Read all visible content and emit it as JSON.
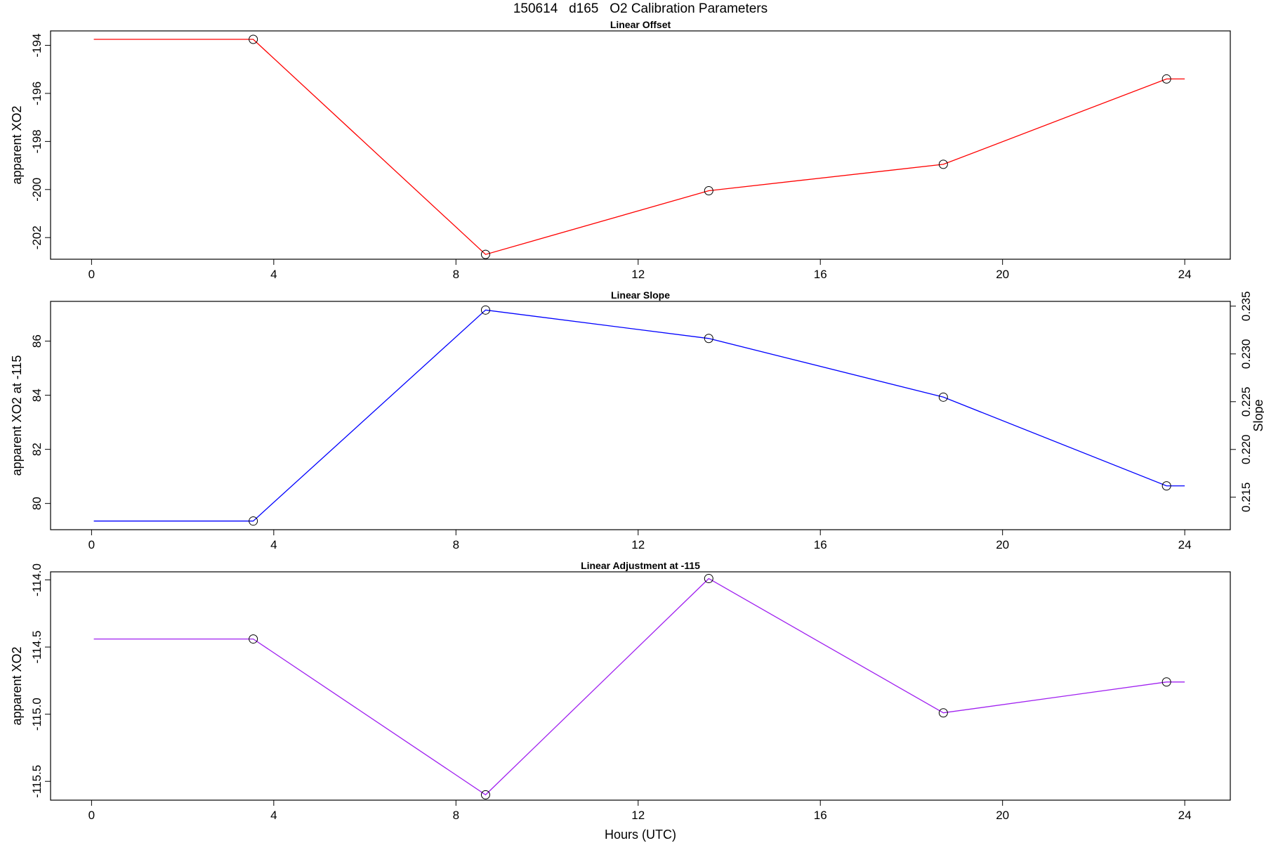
{
  "figure_title": "150614   d165   O2 Calibration Parameters",
  "xlabel": "Hours (UTC)",
  "chart_data": [
    {
      "type": "line",
      "title": "Linear Offset",
      "ylabel": "apparent XO2",
      "xlim": [
        -0.9,
        25.0
      ],
      "ylim": [
        -202.9,
        -193.4
      ],
      "xticks": [
        0,
        4,
        8,
        12,
        16,
        20,
        24
      ],
      "yticks": [
        -202,
        -200,
        -198,
        -196,
        -194
      ],
      "ytick_labels": [
        "-202",
        "-200",
        "-198",
        "-196",
        "-194"
      ],
      "color": "#ff0000",
      "line": {
        "x": [
          0.05,
          3.55,
          8.65,
          13.55,
          18.7,
          23.6,
          24.0
        ],
        "y": [
          -193.75,
          -193.75,
          -202.7,
          -200.05,
          -198.95,
          -195.4,
          -195.4
        ]
      },
      "points": {
        "x": [
          3.55,
          8.65,
          13.55,
          18.7,
          23.6
        ],
        "y": [
          -193.75,
          -202.7,
          -200.05,
          -198.95,
          -195.4
        ]
      }
    },
    {
      "type": "line",
      "title": "Linear Slope",
      "ylabel": "apparent XO2 at -115",
      "right_ylabel": "Slope",
      "xlim": [
        -0.9,
        25.0
      ],
      "ylim": [
        79.03,
        87.47
      ],
      "xticks": [
        0,
        4,
        8,
        12,
        16,
        20,
        24
      ],
      "yticks": [
        80,
        82,
        84,
        86
      ],
      "ytick_labels": [
        "80",
        "82",
        "84",
        "86"
      ],
      "right_ylim": [
        0.2116,
        0.2355
      ],
      "right_yticks": [
        0.215,
        0.22,
        0.225,
        0.23,
        0.235
      ],
      "right_ytick_labels": [
        "0.215",
        "0.220",
        "0.225",
        "0.230",
        "0.235"
      ],
      "color": "#0000ff",
      "line": {
        "x": [
          0.05,
          3.55,
          8.65,
          13.55,
          18.7,
          23.6,
          24.0
        ],
        "y": [
          79.35,
          79.35,
          87.15,
          86.1,
          83.93,
          80.65,
          80.65
        ]
      },
      "points": {
        "x": [
          3.55,
          8.65,
          13.55,
          18.7,
          23.6
        ],
        "y": [
          79.35,
          87.15,
          86.1,
          83.93,
          80.65
        ]
      }
    },
    {
      "type": "line",
      "title": "Linear Adjustment at -115",
      "ylabel": "apparent XO2",
      "xlim": [
        -0.9,
        25.0
      ],
      "ylim": [
        -115.64,
        -113.94
      ],
      "xticks": [
        0,
        4,
        8,
        12,
        16,
        20,
        24
      ],
      "yticks": [
        -115.5,
        -115.0,
        -114.5,
        -114.0
      ],
      "ytick_labels": [
        "-115.5",
        "-115.0",
        "-114.5",
        "-114.0"
      ],
      "color": "#a020f0",
      "line": {
        "x": [
          0.05,
          3.55,
          8.65,
          13.55,
          18.7,
          23.6,
          24.0
        ],
        "y": [
          -114.44,
          -114.44,
          -115.6,
          -113.99,
          -114.99,
          -114.76,
          -114.76
        ]
      },
      "points": {
        "x": [
          3.55,
          8.65,
          13.55,
          18.7,
          23.6
        ],
        "y": [
          -114.44,
          -115.6,
          -113.99,
          -114.99,
          -114.76
        ]
      }
    }
  ]
}
